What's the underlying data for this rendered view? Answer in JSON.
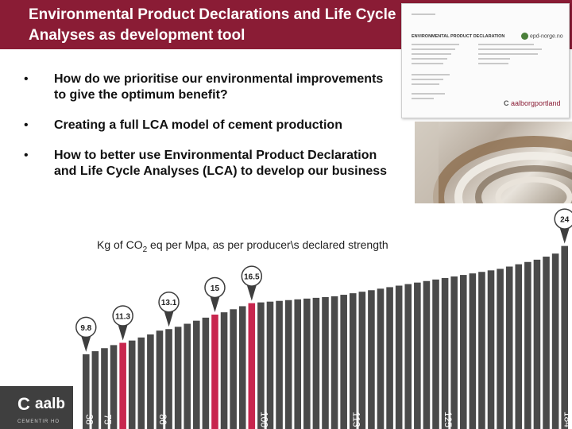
{
  "header": {
    "title": "Environmental Product Declarations and Life Cycle Analyses as development tool"
  },
  "bullets": [
    "How do we prioritise our environmental improvements to give the optimum benefit?",
    "Creating a full LCA model of cement production",
    "How to better use Environmental Product Declaration and Life Cycle Analyses (LCA) to develop our business"
  ],
  "epd_doc": {
    "heading": "ENVIRONMENTAL PRODUCT DECLARATION",
    "logo": "epd-norge.no",
    "brand": "aalborgportland"
  },
  "logo": {
    "name": "aalb",
    "sub": "CEMENTIR HO"
  },
  "colors": {
    "title_bar": "#8a1c35",
    "bar_default": "#4a4a4a",
    "bar_highlight": "#c8264e",
    "marker": "#3e3e3e"
  },
  "chart_data": {
    "type": "bar",
    "ylabel_prefix": "Kg of CO",
    "ylabel_sub": "2",
    "ylabel_suffix": " eq per Mpa, as per producer\\s declared strength",
    "values": [
      9.8,
      10.2,
      10.6,
      11.0,
      11.3,
      11.6,
      12.0,
      12.4,
      12.9,
      13.1,
      13.4,
      13.8,
      14.2,
      14.6,
      15.0,
      15.3,
      15.7,
      16.1,
      16.5,
      16.6,
      16.7,
      16.8,
      16.9,
      17.0,
      17.1,
      17.2,
      17.3,
      17.4,
      17.6,
      17.8,
      18.0,
      18.2,
      18.4,
      18.6,
      18.8,
      19.0,
      19.2,
      19.4,
      19.6,
      19.8,
      20.0,
      20.2,
      20.4,
      20.6,
      20.8,
      21.0,
      21.3,
      21.6,
      21.9,
      22.2,
      22.6,
      23.0,
      24.0
    ],
    "highlight_indices": [
      4,
      14,
      18
    ],
    "callouts": [
      {
        "index": 0,
        "label": "9.8"
      },
      {
        "index": 4,
        "label": "11.3"
      },
      {
        "index": 9,
        "label": "13.1"
      },
      {
        "index": 14,
        "label": "15"
      },
      {
        "index": 18,
        "label": "16.5"
      },
      {
        "index": 52,
        "label": "24"
      }
    ],
    "rank_labels": [
      {
        "index": 0,
        "label": "38"
      },
      {
        "index": 2,
        "label": "75"
      },
      {
        "index": 8,
        "label": "86"
      },
      {
        "index": 19,
        "label": "100"
      },
      {
        "index": 29,
        "label": "113"
      },
      {
        "index": 39,
        "label": "125"
      },
      {
        "index": 52,
        "label": "184"
      }
    ],
    "ylim": [
      0,
      25
    ]
  }
}
